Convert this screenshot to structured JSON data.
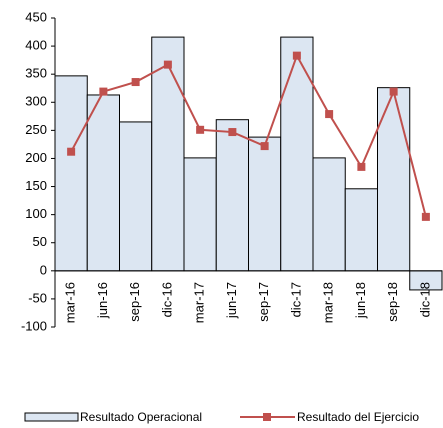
{
  "chart_data": {
    "type": "bar",
    "categories": [
      "mar-16",
      "jun-16",
      "sep-16",
      "dic-16",
      "mar-17",
      "jun-17",
      "sep-17",
      "dic-17",
      "mar-18",
      "jun-18",
      "sep-18",
      "dic-18"
    ],
    "series": [
      {
        "name": "Resultado Operacional",
        "type": "bar",
        "color": "#dce6f2",
        "values": [
          347,
          313,
          265,
          416,
          201,
          269,
          238,
          416,
          201,
          146,
          326,
          -34
        ]
      },
      {
        "name": "Resultado del Ejercicio",
        "type": "line",
        "color": "#c0504d",
        "values": [
          212,
          319,
          336,
          367,
          251,
          247,
          222,
          383,
          279,
          185,
          319,
          96
        ]
      }
    ],
    "ylim": [
      -100,
      450
    ],
    "yticks": [
      -100,
      -50,
      0,
      50,
      100,
      150,
      200,
      250,
      300,
      350,
      400,
      450
    ]
  }
}
